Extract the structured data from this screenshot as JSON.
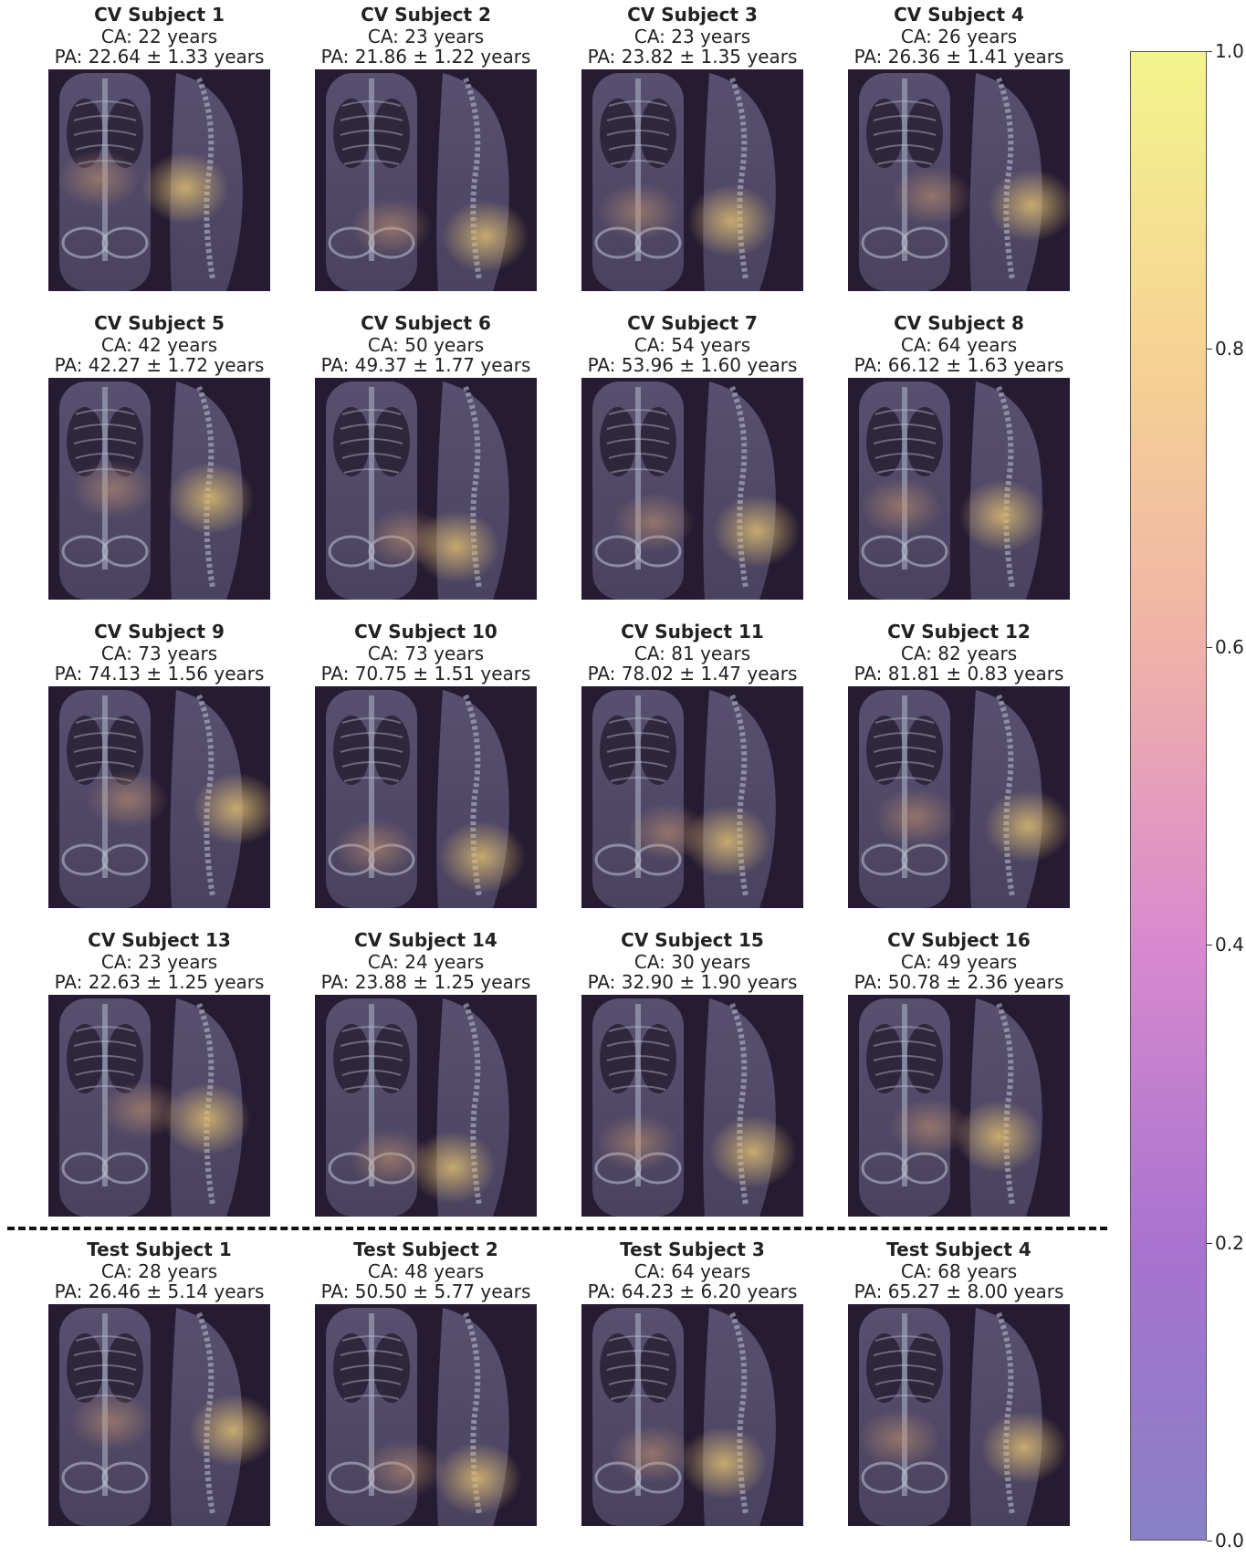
{
  "panels": [
    {
      "title": "CV Subject 1",
      "ca": "CA: 22 years",
      "pa": "PA: 22.64  ± 1.33 years"
    },
    {
      "title": "CV Subject 2",
      "ca": "CA: 23 years",
      "pa": "PA: 21.86  ± 1.22 years"
    },
    {
      "title": "CV Subject 3",
      "ca": "CA: 23 years",
      "pa": "PA: 23.82  ± 1.35 years"
    },
    {
      "title": "CV Subject 4",
      "ca": "CA: 26 years",
      "pa": "PA: 26.36  ± 1.41 years"
    },
    {
      "title": "CV Subject 5",
      "ca": "CA: 42 years",
      "pa": "PA: 42.27  ± 1.72 years"
    },
    {
      "title": "CV Subject 6",
      "ca": "CA: 50 years",
      "pa": "PA: 49.37  ± 1.77 years"
    },
    {
      "title": "CV Subject 7",
      "ca": "CA: 54 years",
      "pa": "PA: 53.96  ± 1.60 years"
    },
    {
      "title": "CV Subject 8",
      "ca": "CA: 64 years",
      "pa": "PA: 66.12  ± 1.63 years"
    },
    {
      "title": "CV Subject 9",
      "ca": "CA: 73 years",
      "pa": "PA: 74.13  ± 1.56 years"
    },
    {
      "title": "CV Subject 10",
      "ca": "CA: 73 years",
      "pa": "PA: 70.75  ± 1.51 years"
    },
    {
      "title": "CV Subject 11",
      "ca": "CA: 81 years",
      "pa": "PA: 78.02  ± 1.47 years"
    },
    {
      "title": "CV Subject 12",
      "ca": "CA: 82 years",
      "pa": "PA: 81.81  ± 0.83 years"
    },
    {
      "title": "CV Subject 13",
      "ca": "CA: 23 years",
      "pa": "PA: 22.63  ± 1.25 years"
    },
    {
      "title": "CV Subject 14",
      "ca": "CA: 24 years",
      "pa": "PA: 23.88  ± 1.25 years"
    },
    {
      "title": "CV Subject 15",
      "ca": "CA: 30 years",
      "pa": "PA: 32.90  ± 1.90 years"
    },
    {
      "title": "CV Subject 16",
      "ca": "CA: 49 years",
      "pa": "PA: 50.78  ± 2.36 years"
    },
    {
      "title": "Test Subject 1",
      "ca": "CA: 28 years",
      "pa": "PA: 26.46  ± 5.14 years"
    },
    {
      "title": "Test Subject 2",
      "ca": "CA: 48 years",
      "pa": "PA: 50.50  ± 5.77 years"
    },
    {
      "title": "Test Subject 3",
      "ca": "CA: 64 years",
      "pa": "PA: 64.23  ± 6.20 years"
    },
    {
      "title": "Test Subject 4",
      "ca": "CA: 68 years",
      "pa": "PA: 65.27  ± 8.00 years"
    }
  ],
  "colorbar": {
    "ticks": [
      "0.0",
      "0.2",
      "0.4",
      "0.6",
      "0.8",
      "1.0"
    ],
    "colors": {
      "low": "#8780c4",
      "mid": "#d889cf",
      "high": "#f3f48d"
    }
  }
}
